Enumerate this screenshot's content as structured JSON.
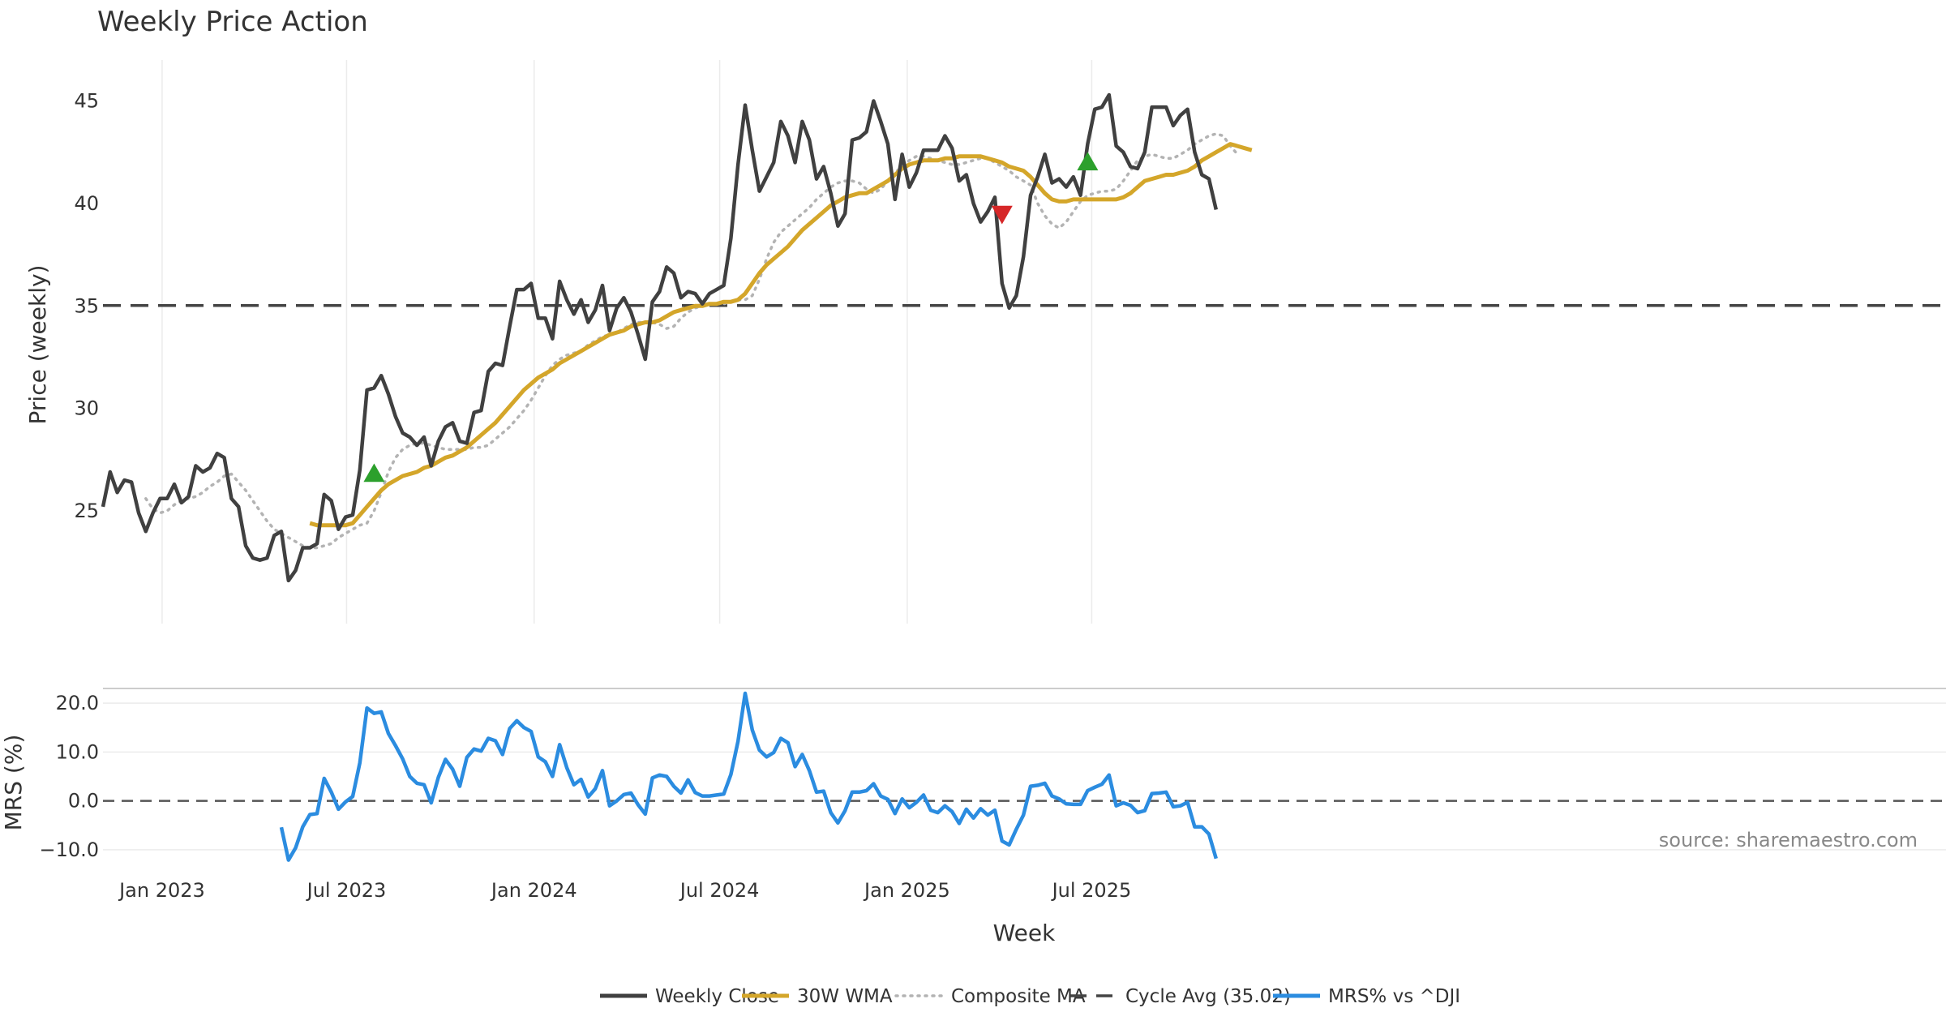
{
  "chart_data": {
    "type": "line",
    "title": "Weekly Price Action",
    "xlabel": "Week",
    "x_start": "2022-11-04",
    "x_ticks": [
      {
        "date": "2023-01-01",
        "label": "Jan 2023"
      },
      {
        "date": "2023-07-01",
        "label": "Jul 2023"
      },
      {
        "date": "2024-01-01",
        "label": "Jan 2024"
      },
      {
        "date": "2024-07-01",
        "label": "Jul 2024"
      },
      {
        "date": "2025-01-01",
        "label": "Jan 2025"
      },
      {
        "date": "2025-07-01",
        "label": "Jul 2025"
      }
    ],
    "price_panel": {
      "ylabel": "Price (weekly)",
      "ylim": [
        19.5,
        47
      ],
      "yticks": [
        25,
        30,
        35,
        40,
        45
      ],
      "grid": "x",
      "series": [
        {
          "name": "Weekly Close",
          "color": "#404040",
          "style": "solid",
          "start_index": 0,
          "values": [
            25.2,
            26.9,
            25.9,
            26.5,
            26.4,
            24.9,
            24.0,
            24.9,
            25.6,
            25.6,
            26.3,
            25.4,
            25.7,
            27.2,
            26.9,
            27.1,
            27.8,
            27.6,
            25.6,
            25.2,
            23.3,
            22.7,
            22.6,
            22.7,
            23.8,
            24.0,
            21.6,
            22.1,
            23.2,
            23.2,
            23.4,
            25.8,
            25.5,
            24.1,
            24.7,
            24.8,
            27.0,
            30.9,
            31.0,
            31.6,
            30.7,
            29.6,
            28.8,
            28.6,
            28.2,
            28.6,
            27.2,
            28.4,
            29.1,
            29.3,
            28.4,
            28.3,
            29.8,
            29.9,
            31.8,
            32.2,
            32.1,
            34.0,
            35.8,
            35.8,
            36.1,
            34.4,
            34.4,
            33.4,
            36.2,
            35.3,
            34.6,
            35.3,
            34.2,
            34.8,
            36.0,
            33.8,
            34.9,
            35.4,
            34.7,
            33.6,
            32.4,
            35.2,
            35.7,
            36.9,
            36.6,
            35.4,
            35.7,
            35.6,
            35.1,
            35.6,
            35.8,
            36.0,
            38.3,
            41.9,
            44.8,
            42.6,
            40.6,
            41.3,
            42.0,
            44.0,
            43.3,
            42.0,
            44.0,
            43.1,
            41.2,
            41.8,
            40.5,
            38.9,
            39.5,
            43.1,
            43.2,
            43.5,
            45.0,
            44.0,
            42.9,
            40.2,
            42.4,
            40.8,
            41.5,
            42.6,
            42.6,
            42.6,
            43.3,
            42.7,
            41.1,
            41.4,
            40.0,
            39.1,
            39.6,
            40.3,
            36.1,
            34.9,
            35.5,
            37.4,
            40.4,
            41.3,
            42.4,
            41.0,
            41.2,
            40.8,
            41.3,
            40.4,
            42.9,
            44.6,
            44.7,
            45.3,
            42.8,
            42.5,
            41.8,
            41.7,
            42.5,
            44.7,
            44.7,
            44.7,
            43.8,
            44.3,
            44.6,
            42.5,
            41.4,
            41.2,
            39.7
          ]
        },
        {
          "name": "30W WMA",
          "color": "#D4A62A",
          "style": "solid",
          "start_index": 29,
          "values": [
            24.4,
            24.3,
            24.3,
            24.3,
            24.3,
            24.3,
            24.4,
            24.8,
            25.2,
            25.6,
            26.0,
            26.3,
            26.5,
            26.7,
            26.8,
            26.9,
            27.1,
            27.2,
            27.4,
            27.6,
            27.7,
            27.9,
            28.1,
            28.4,
            28.7,
            29.0,
            29.3,
            29.7,
            30.1,
            30.5,
            30.9,
            31.2,
            31.5,
            31.7,
            31.9,
            32.2,
            32.4,
            32.6,
            32.8,
            33.0,
            33.2,
            33.4,
            33.6,
            33.7,
            33.8,
            34.0,
            34.1,
            34.2,
            34.2,
            34.3,
            34.5,
            34.7,
            34.8,
            34.9,
            35.0,
            35.0,
            35.1,
            35.1,
            35.2,
            35.2,
            35.3,
            35.6,
            36.1,
            36.6,
            37.0,
            37.3,
            37.6,
            37.9,
            38.3,
            38.7,
            39.0,
            39.3,
            39.6,
            39.9,
            40.1,
            40.3,
            40.4,
            40.5,
            40.5,
            40.7,
            40.9,
            41.1,
            41.4,
            41.7,
            41.9,
            42.0,
            42.1,
            42.1,
            42.1,
            42.2,
            42.2,
            42.3,
            42.3,
            42.3,
            42.3,
            42.2,
            42.1,
            42.0,
            41.8,
            41.7,
            41.6,
            41.3,
            40.9,
            40.5,
            40.2,
            40.1,
            40.1,
            40.2,
            40.2,
            40.2,
            40.2,
            40.2,
            40.2,
            40.2,
            40.3,
            40.5,
            40.8,
            41.1,
            41.2,
            41.3,
            41.4,
            41.4,
            41.5,
            41.6,
            41.8,
            42.1,
            42.3,
            42.5,
            42.7,
            42.9,
            42.8,
            42.7,
            42.6
          ]
        },
        {
          "name": "Composite MA",
          "color": "#B3B3B3",
          "style": "dotted",
          "start_index": 6,
          "values": [
            25.6,
            25.1,
            24.9,
            25.0,
            25.3,
            25.5,
            25.6,
            25.7,
            25.9,
            26.2,
            26.4,
            26.7,
            26.8,
            26.4,
            26.0,
            25.5,
            25.0,
            24.5,
            24.1,
            23.9,
            23.7,
            23.5,
            23.3,
            23.2,
            23.2,
            23.3,
            23.4,
            23.7,
            23.9,
            24.1,
            24.3,
            24.4,
            25.0,
            25.9,
            26.9,
            27.6,
            28.0,
            28.2,
            28.3,
            28.3,
            28.2,
            28.1,
            28.0,
            28.0,
            28.0,
            28.0,
            28.1,
            28.1,
            28.2,
            28.5,
            28.8,
            29.1,
            29.5,
            29.9,
            30.4,
            31.0,
            31.6,
            32.1,
            32.4,
            32.6,
            32.7,
            32.8,
            33.1,
            33.3,
            33.5,
            33.6,
            33.7,
            33.9,
            34.1,
            34.2,
            34.2,
            34.2,
            34.1,
            33.9,
            34.0,
            34.4,
            34.7,
            34.9,
            35.0,
            35.1,
            35.1,
            35.1,
            35.2,
            35.3,
            35.3,
            35.5,
            36.3,
            37.3,
            38.1,
            38.6,
            38.9,
            39.2,
            39.5,
            39.8,
            40.2,
            40.5,
            40.8,
            41.0,
            41.1,
            41.1,
            41.0,
            40.7,
            40.5,
            40.7,
            41.1,
            41.5,
            41.8,
            42.1,
            42.3,
            42.3,
            42.2,
            42.1,
            42.0,
            41.9,
            41.9,
            42.0,
            42.1,
            42.2,
            42.2,
            42.0,
            41.8,
            41.6,
            41.3,
            41.1,
            40.9,
            40.0,
            39.4,
            39.0,
            38.8,
            39.1,
            39.6,
            40.1,
            40.4,
            40.5,
            40.6,
            40.6,
            40.7,
            41.1,
            41.6,
            42.1,
            42.3,
            42.4,
            42.3,
            42.2,
            42.2,
            42.4,
            42.6,
            42.9,
            43.1,
            43.3,
            43.4,
            43.3,
            42.8,
            42.4
          ]
        },
        {
          "name": "Cycle Avg (35.02)",
          "color": "#444444",
          "style": "dashed",
          "value": 35.02
        }
      ],
      "markers": [
        {
          "type": "buy",
          "shape": "triangle-up",
          "color": "#2CA02C",
          "index": 38,
          "y": 26.8
        },
        {
          "type": "sell",
          "shape": "triangle-down",
          "color": "#D62728",
          "index": 126,
          "y": 39.5
        },
        {
          "type": "buy",
          "shape": "triangle-up",
          "color": "#2CA02C",
          "index": 138,
          "y": 42.0
        }
      ]
    },
    "mrs_panel": {
      "ylabel": "MRS (%)",
      "ylim": [
        -13,
        23
      ],
      "yticks": [
        -10.0,
        0.0,
        10.0,
        20.0
      ],
      "ytick_labels": [
        "−10.0",
        "0.0",
        "10.0",
        "20.0"
      ],
      "zero_line": "dashed",
      "series": [
        {
          "name": "MRS% vs ^DJI",
          "color": "#2B8CE0",
          "start_index": 25,
          "values": [
            -5.4,
            -12.1,
            -9.6,
            -5.3,
            -2.8,
            -2.6,
            4.6,
            1.8,
            -1.7,
            -0.2,
            0.9,
            7.8,
            19.0,
            17.9,
            18.2,
            13.8,
            11.3,
            8.6,
            5.0,
            3.6,
            3.3,
            -0.4,
            4.8,
            8.5,
            6.5,
            3.0,
            8.9,
            10.6,
            10.2,
            12.8,
            12.3,
            9.5,
            14.8,
            16.4,
            15.0,
            14.2,
            9.0,
            8.0,
            5.0,
            11.5,
            6.8,
            3.3,
            4.4,
            0.8,
            2.5,
            6.2,
            -1.0,
            0.0,
            1.3,
            1.6,
            -0.8,
            -2.7,
            4.7,
            5.3,
            5.0,
            3.0,
            1.6,
            4.3,
            1.7,
            1.0,
            1.0,
            1.2,
            1.4,
            5.4,
            12.2,
            22.0,
            14.5,
            10.4,
            9.0,
            9.9,
            12.8,
            11.9,
            7.0,
            9.5,
            6.2,
            1.8,
            2.0,
            -2.4,
            -4.5,
            -2.0,
            1.8,
            1.8,
            2.1,
            3.5,
            1.0,
            0.3,
            -2.6,
            0.4,
            -1.4,
            -0.3,
            1.2,
            -1.9,
            -2.4,
            -1.0,
            -2.2,
            -4.6,
            -1.7,
            -3.5,
            -1.6,
            -2.9,
            -1.9,
            -8.2,
            -9.0,
            -5.8,
            -2.9,
            3.0,
            3.2,
            3.6,
            1.0,
            0.4,
            -0.6,
            -0.7,
            -0.7,
            2.1,
            2.8,
            3.4,
            5.3,
            -1.0,
            -0.4,
            -0.9,
            -2.4,
            -2.0,
            1.5,
            1.6,
            1.8,
            -1.2,
            -1.0,
            -0.3,
            -5.3,
            -5.3,
            -6.8,
            -11.8
          ]
        }
      ]
    },
    "legend": {
      "placement": "bottom-center",
      "entries": [
        {
          "label": "Weekly Close",
          "color": "#404040",
          "style": "solid"
        },
        {
          "label": "30W WMA",
          "color": "#D4A62A",
          "style": "solid"
        },
        {
          "label": "Composite MA",
          "color": "#B3B3B3",
          "style": "dotted"
        },
        {
          "label": "Cycle Avg (35.02)",
          "color": "#444444",
          "style": "dashed"
        },
        {
          "label": "MRS% vs ^DJI",
          "color": "#2B8CE0",
          "style": "solid"
        }
      ]
    },
    "source_note": "source: sharemaestro.com"
  }
}
